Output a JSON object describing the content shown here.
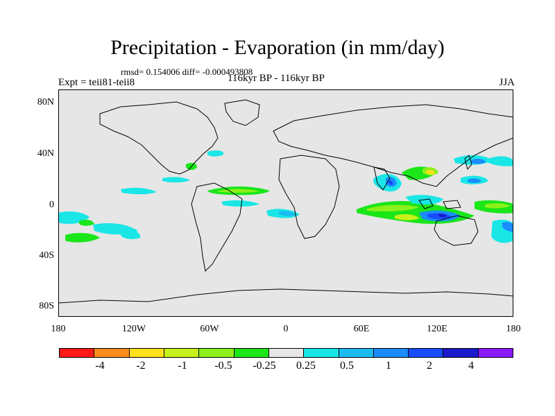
{
  "title": "Precipitation - Evaporation (in mm/day)",
  "stats": "rmsd= 0.154006 diff= -0.000493808",
  "left_label": "Expt = teii81-teii8",
  "center_label": "116kyr BP - 116kyr BP",
  "right_label": "JJA",
  "lat_labels": [
    "80N",
    "40N",
    "0",
    "40S",
    "80S"
  ],
  "lon_labels": [
    "180",
    "120W",
    "60W",
    "0",
    "60E",
    "120E",
    "180"
  ],
  "colorbar": {
    "colors": [
      "#ff1a1a",
      "#ff8c1a",
      "#ffe01a",
      "#c8f01a",
      "#8cf01a",
      "#1ae61a",
      "#e6e6e6",
      "#1ae6e6",
      "#1abcf0",
      "#1a8cff",
      "#1a4cff",
      "#1a1acc",
      "#8c1aff"
    ],
    "labels": [
      "-4",
      "-2",
      "-1",
      "-0.5",
      "-0.25",
      "0.25",
      "0.5",
      "1",
      "2",
      "4"
    ]
  },
  "map": {
    "projection": "equirectangular",
    "lon_range": [
      -180,
      180
    ],
    "lat_range": [
      -90,
      90
    ],
    "background_color": "#e6e6e6"
  }
}
